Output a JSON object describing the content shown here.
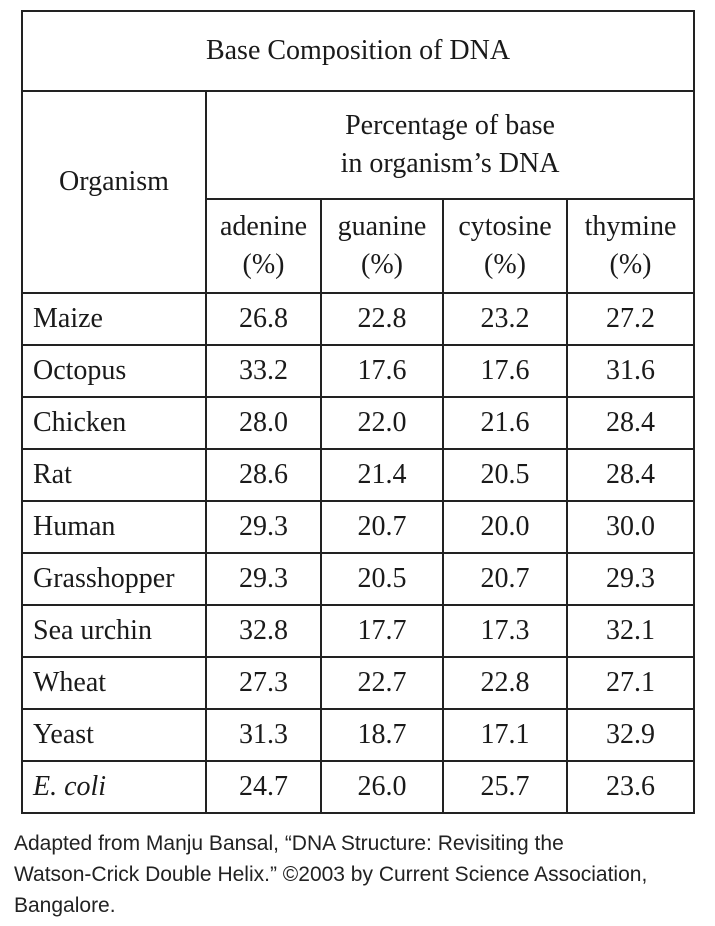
{
  "chart_data": {
    "type": "table",
    "title": "Base Composition of DNA",
    "row_header": "Organism",
    "group_header": [
      "Percentage of base",
      "in organism’s DNA"
    ],
    "columns": [
      {
        "name": "adenine",
        "unit": "(%)"
      },
      {
        "name": "guanine",
        "unit": "(%)"
      },
      {
        "name": "cytosine",
        "unit": "(%)"
      },
      {
        "name": "thymine",
        "unit": "(%)"
      }
    ],
    "rows": [
      {
        "organism": "Maize",
        "italic": false,
        "values": [
          "26.8",
          "22.8",
          "23.2",
          "27.2"
        ]
      },
      {
        "organism": "Octopus",
        "italic": false,
        "values": [
          "33.2",
          "17.6",
          "17.6",
          "31.6"
        ]
      },
      {
        "organism": "Chicken",
        "italic": false,
        "values": [
          "28.0",
          "22.0",
          "21.6",
          "28.4"
        ]
      },
      {
        "organism": "Rat",
        "italic": false,
        "values": [
          "28.6",
          "21.4",
          "20.5",
          "28.4"
        ]
      },
      {
        "organism": "Human",
        "italic": false,
        "values": [
          "29.3",
          "20.7",
          "20.0",
          "30.0"
        ]
      },
      {
        "organism": "Grasshopper",
        "italic": false,
        "values": [
          "29.3",
          "20.5",
          "20.7",
          "29.3"
        ]
      },
      {
        "organism": "Sea urchin",
        "italic": false,
        "values": [
          "32.8",
          "17.7",
          "17.3",
          "32.1"
        ]
      },
      {
        "organism": "Wheat",
        "italic": false,
        "values": [
          "27.3",
          "22.7",
          "22.8",
          "27.1"
        ]
      },
      {
        "organism": "Yeast",
        "italic": false,
        "values": [
          "31.3",
          "18.7",
          "17.1",
          "32.9"
        ]
      },
      {
        "organism": "E. coli",
        "italic": true,
        "values": [
          "24.7",
          "26.0",
          "25.7",
          "23.6"
        ]
      }
    ]
  },
  "caption": {
    "lines": [
      "Adapted from Manju Bansal, “DNA Structure: Revisiting the",
      "Watson-Crick Double Helix.” ©2003 by Current Science Association,",
      "Bangalore."
    ]
  }
}
